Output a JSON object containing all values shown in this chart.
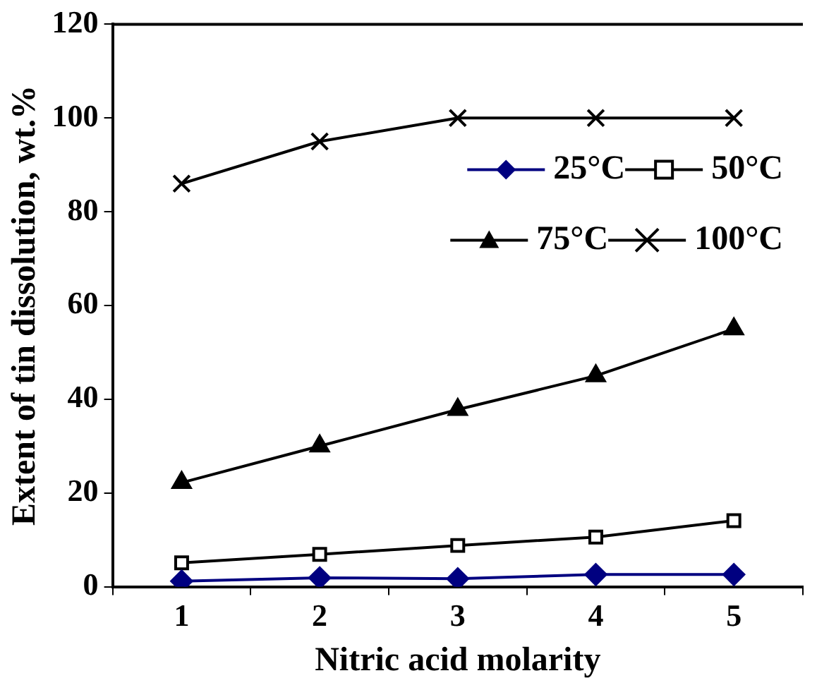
{
  "chart_data": {
    "type": "line",
    "xlabel": "Nitric acid molarity",
    "ylabel": "Extent of tin dissolution, wt.%",
    "categories": [
      "1",
      "2",
      "3",
      "4",
      "5"
    ],
    "series": [
      {
        "name": "25°C",
        "color": "#000080",
        "marker": "diamond",
        "values": [
          1.2,
          1.9,
          1.7,
          2.6,
          2.6
        ]
      },
      {
        "name": "50°C",
        "color": "#000000",
        "marker": "square",
        "values": [
          5.1,
          6.9,
          8.8,
          10.6,
          14.1
        ]
      },
      {
        "name": "75°C",
        "color": "#000000",
        "marker": "triangle",
        "values": [
          22.2,
          30,
          37.8,
          45,
          55
        ]
      },
      {
        "name": "100°C",
        "color": "#000000",
        "marker": "cross",
        "values": [
          86,
          95,
          100,
          100,
          100
        ]
      }
    ],
    "ylim": [
      0,
      120
    ],
    "yticks": [
      0,
      20,
      40,
      60,
      80,
      100,
      120
    ],
    "grid": false,
    "legend": "top right",
    "line_style": "solid"
  }
}
